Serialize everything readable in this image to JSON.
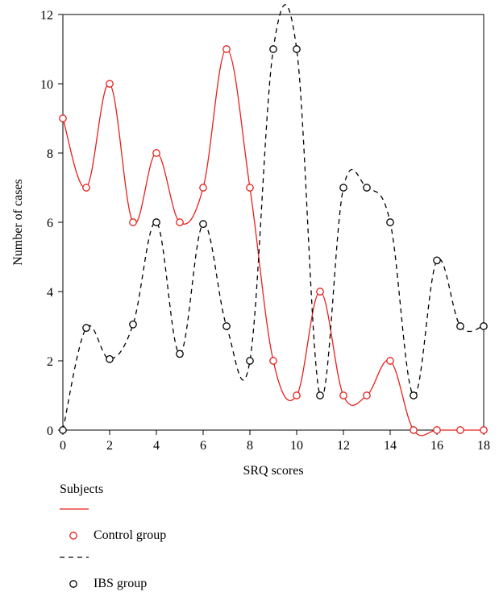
{
  "chart_data": {
    "type": "line",
    "xlabel": "SRQ scores",
    "ylabel": "Number of cases",
    "xlim": [
      0,
      18
    ],
    "ylim": [
      0,
      12
    ],
    "xticks": [
      0,
      2,
      4,
      6,
      8,
      10,
      12,
      14,
      16,
      18
    ],
    "yticks": [
      0,
      2,
      4,
      6,
      8,
      10,
      12
    ],
    "grid": false,
    "legend_title": "Subjects",
    "legend_position": "bottom-left",
    "series": [
      {
        "name": "Control group",
        "color": "#e8201c",
        "line_style": "solid",
        "marker": "open-circle",
        "x": [
          0,
          1,
          2,
          3,
          4,
          5,
          6,
          7,
          8,
          9,
          10,
          11,
          12,
          13,
          14,
          15,
          16,
          17,
          18
        ],
        "values": [
          9,
          7,
          10,
          6,
          8,
          6,
          7,
          11,
          7,
          2,
          1,
          4,
          1,
          1,
          2,
          0,
          0,
          0,
          0
        ]
      },
      {
        "name": "IBS group",
        "color": "#000000",
        "line_style": "dashed",
        "marker": "open-circle",
        "x": [
          0,
          1,
          2,
          3,
          4,
          5,
          6,
          7,
          8,
          9,
          10,
          11,
          12,
          13,
          14,
          15,
          16,
          17,
          18
        ],
        "values": [
          0,
          2.95,
          2.05,
          3.05,
          6,
          2.2,
          5.95,
          3,
          2,
          11,
          11,
          1,
          7,
          7,
          6,
          1,
          4.9,
          3,
          3
        ]
      }
    ]
  }
}
